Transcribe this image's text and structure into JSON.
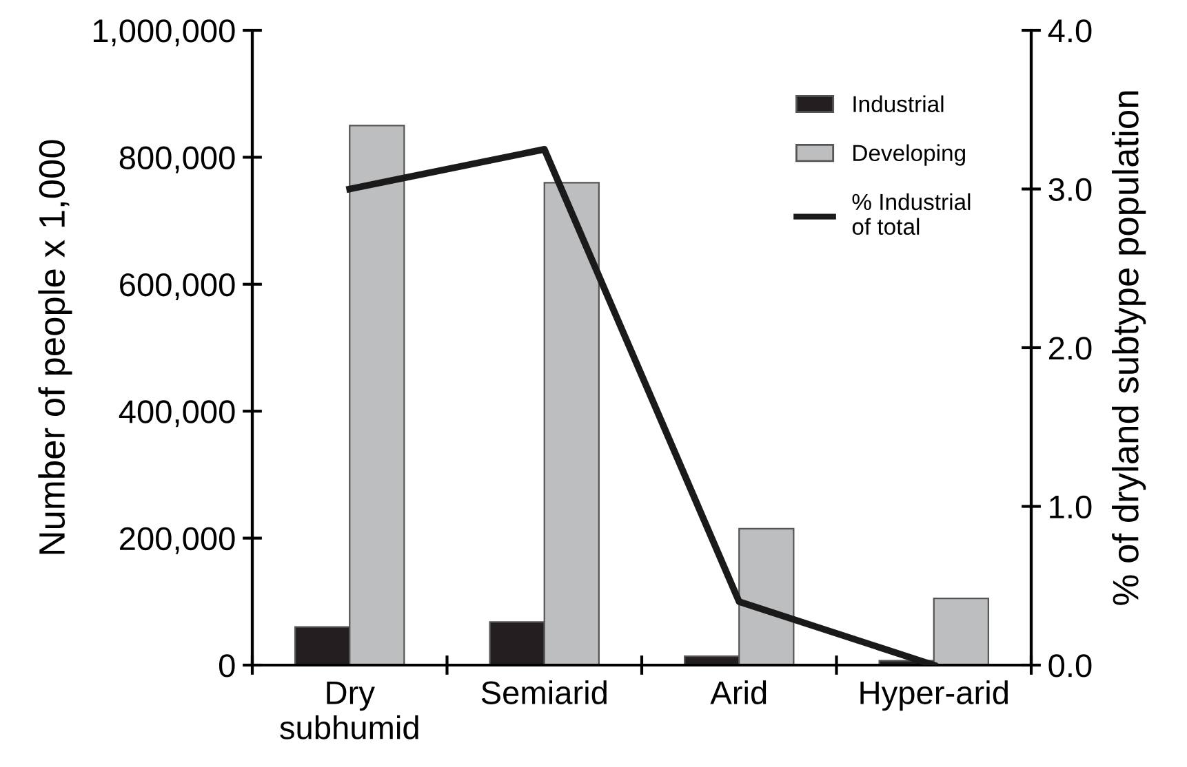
{
  "chart_data": {
    "type": "bar",
    "categories": [
      "Dry\nsubhumid",
      "Semiarid",
      "Arid",
      "Hyper-arid"
    ],
    "ylabel": "Number of people x 1,000",
    "y2label": "% of dryland subtype population",
    "ylim": [
      0,
      1000000
    ],
    "yticks": [
      {
        "value": 0,
        "label": "0"
      },
      {
        "value": 200000,
        "label": "200,000"
      },
      {
        "value": 400000,
        "label": "400,000"
      },
      {
        "value": 600000,
        "label": "600,000"
      },
      {
        "value": 800000,
        "label": "800,000"
      },
      {
        "value": 1000000,
        "label": "1,000,000"
      }
    ],
    "y2lim": [
      0,
      4
    ],
    "y2ticks": [
      {
        "value": 0,
        "label": "0.0"
      },
      {
        "value": 1,
        "label": "1.0"
      },
      {
        "value": 2,
        "label": "2.0"
      },
      {
        "value": 3,
        "label": "3.0"
      },
      {
        "value": 4,
        "label": "4.0"
      }
    ],
    "series": [
      {
        "name": "Industrial",
        "color": "#231f20",
        "values": [
          60000,
          68000,
          14000,
          7000
        ]
      },
      {
        "name": "Developing",
        "color": "#bcbec0",
        "values": [
          850000,
          760000,
          215000,
          105000
        ]
      },
      {
        "name": "% Industrial\nof total",
        "type": "line",
        "axis": "y2",
        "color": "#1a1a1a",
        "values": [
          3.0,
          3.25,
          0.4,
          0.0
        ]
      }
    ],
    "legend": "top right",
    "grid": false
  }
}
